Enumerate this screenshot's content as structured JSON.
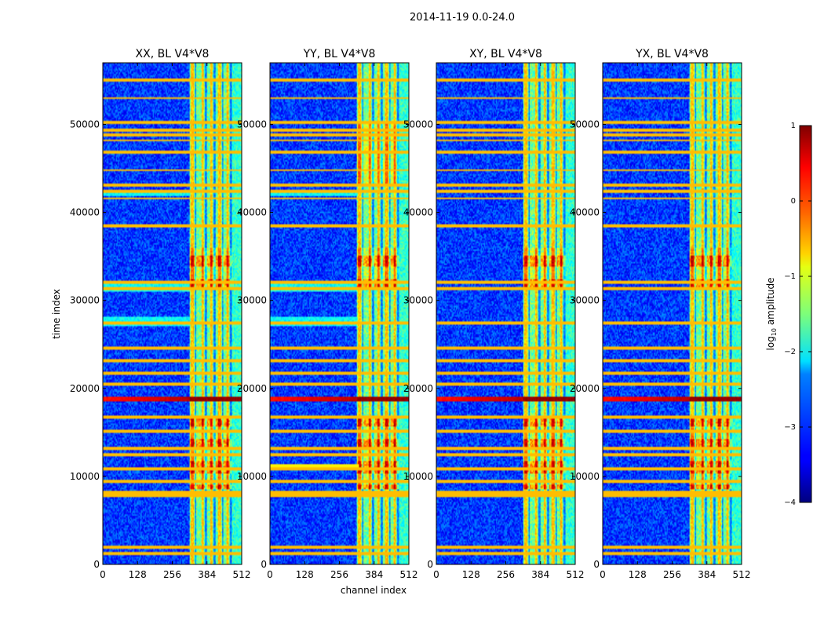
{
  "suptitle": "2014-11-19 0.0-24.0",
  "shared_xlabel": "channel index",
  "shared_ylabel": "time index",
  "chart_data": [
    {
      "type": "heatmap",
      "title": "XX, BL V4*V8",
      "xlim": [
        0,
        512
      ],
      "ylim": [
        0,
        57000
      ],
      "xticks": [
        0,
        128,
        256,
        384,
        512
      ],
      "yticks": [
        0,
        10000,
        20000,
        30000,
        40000,
        50000
      ]
    },
    {
      "type": "heatmap",
      "title": "YY, BL V4*V8",
      "xlim": [
        0,
        512
      ],
      "ylim": [
        0,
        57000
      ],
      "xticks": [
        0,
        128,
        256,
        384,
        512
      ],
      "yticks": [
        0,
        10000,
        20000,
        30000,
        40000,
        50000
      ]
    },
    {
      "type": "heatmap",
      "title": "XY, BL V4*V8",
      "xlim": [
        0,
        512
      ],
      "ylim": [
        0,
        57000
      ],
      "xticks": [
        0,
        128,
        256,
        384,
        512
      ],
      "yticks": [
        0,
        10000,
        20000,
        30000,
        40000,
        50000
      ]
    },
    {
      "type": "heatmap",
      "title": "YX, BL V4*V8",
      "xlim": [
        0,
        512
      ],
      "ylim": [
        0,
        57000
      ],
      "xticks": [
        0,
        128,
        256,
        384,
        512
      ],
      "yticks": [
        0,
        10000,
        20000,
        30000,
        40000,
        50000
      ]
    }
  ],
  "colorbar": {
    "label_main": "log",
    "label_sub": "10",
    "label_rest": " amplitude",
    "range": [
      -4,
      1
    ],
    "ticks": [
      {
        "value": 1,
        "label": "1"
      },
      {
        "value": 0,
        "label": "0"
      },
      {
        "value": -1,
        "label": "−1"
      },
      {
        "value": -2,
        "label": "−2"
      },
      {
        "value": -3,
        "label": "−3"
      },
      {
        "value": -4,
        "label": "−4"
      }
    ],
    "colormap": "jet"
  },
  "features": {
    "flag_rows": [
      1200,
      2000,
      7800,
      8200,
      9500,
      10800,
      12400,
      13200,
      15200,
      16800,
      20500,
      21800,
      23200,
      24600,
      27500,
      31300,
      32000,
      38500,
      41600,
      42400,
      43100,
      44800,
      46800,
      48200,
      48800,
      49400,
      50200,
      53000,
      55000
    ],
    "bright_band_time": [
      18500,
      19000
    ],
    "bright_band_value": 0.7,
    "strong_columns": [
      330,
      368,
      400,
      430,
      460
    ],
    "active_channels": [
      320,
      475
    ]
  }
}
